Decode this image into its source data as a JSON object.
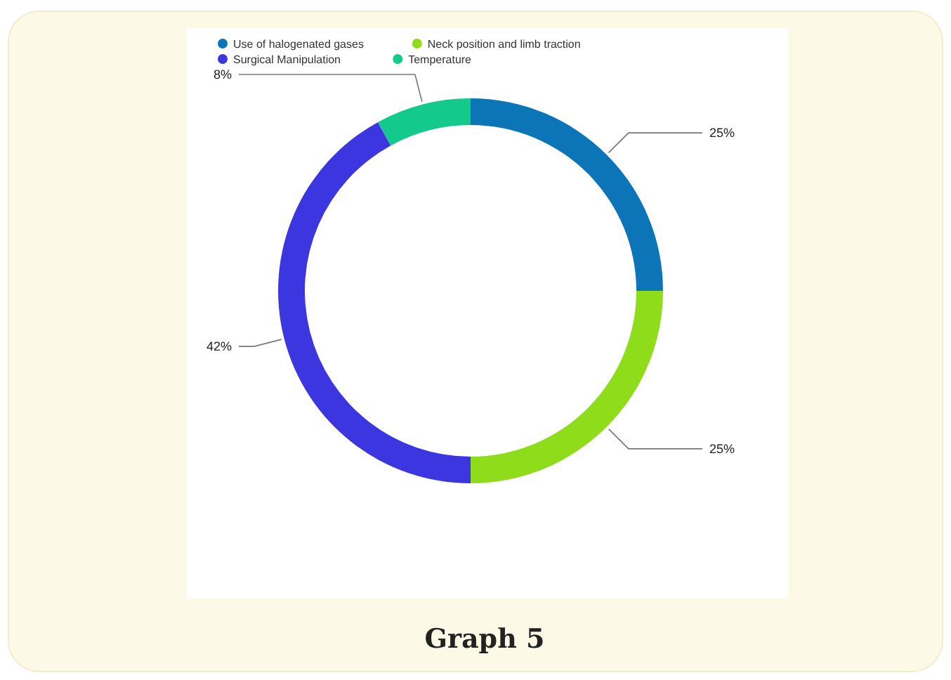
{
  "chart_data": {
    "type": "donut",
    "categories": [
      "Use of halogenated gases",
      "Neck position and limb traction",
      "Surgical Manipulation",
      "Temperature"
    ],
    "values": [
      25,
      25,
      42,
      8
    ],
    "colors": [
      "#0b75b8",
      "#8fdc1a",
      "#3c36e0",
      "#14c98c"
    ],
    "value_labels": [
      "25%",
      "25%",
      "42%",
      "8%"
    ],
    "legend": "top left",
    "annotations": [
      "Graph 5"
    ]
  }
}
